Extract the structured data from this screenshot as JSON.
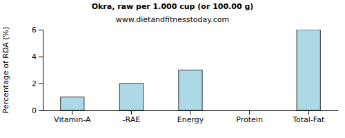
{
  "chart_data": {
    "type": "bar",
    "title": "Okra, raw per 1.000 cup (or 100.00 g)",
    "subtitle": "www.dietandfitnesstoday.com",
    "y_label": "Percentage of RDA (%)",
    "categories": [
      "Vitamin-A",
      "-RAE",
      "Energy",
      "Protein",
      "Total-Fat"
    ],
    "values": [
      1,
      2,
      3,
      0,
      6
    ],
    "color": "#add8e6",
    "ylim": [
      0,
      6
    ],
    "yticks": [
      0,
      2,
      4,
      6
    ],
    "grid": false
  }
}
